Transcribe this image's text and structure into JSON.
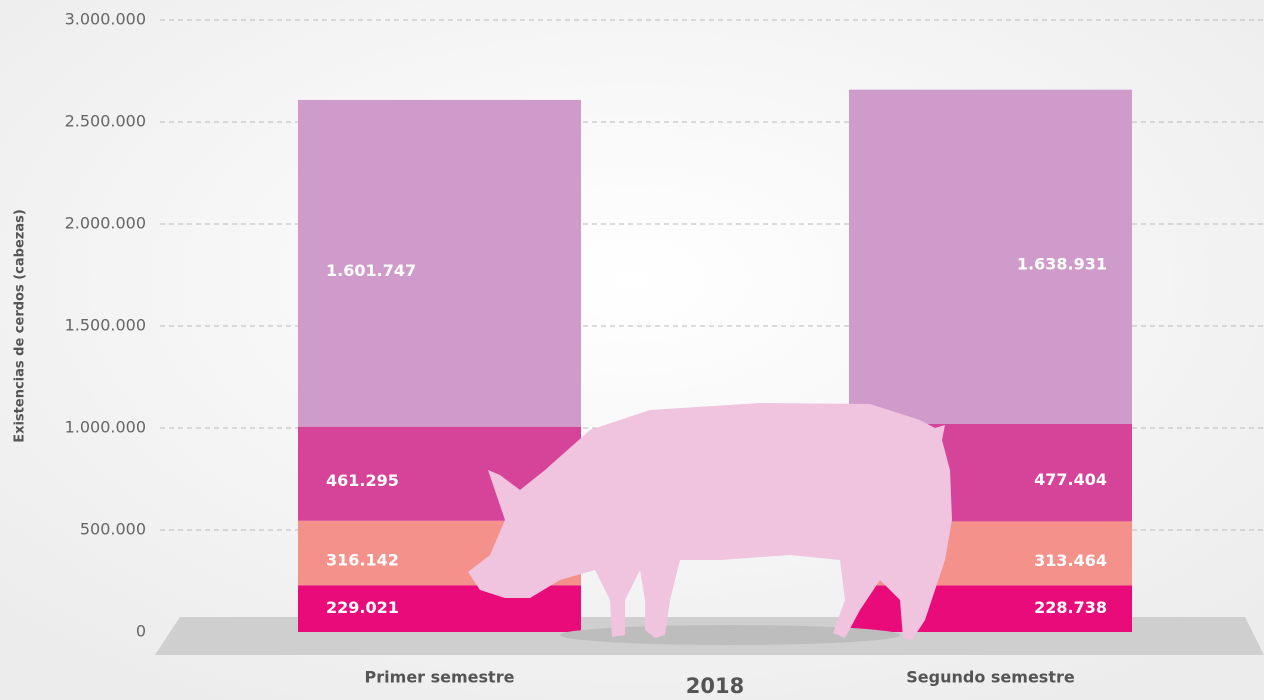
{
  "chart_data": {
    "type": "bar",
    "stacked": true,
    "ylabel": "Existencias de cerdos (cabezas)",
    "xlabel": "2018",
    "categories": [
      "Primer semestre",
      "Segundo semestre"
    ],
    "series": [
      {
        "color": "#ea0b7b",
        "values": [
          229021,
          228738
        ],
        "value_labels": [
          "229.021",
          "228.738"
        ]
      },
      {
        "color": "#f4918b",
        "values": [
          316142,
          313464
        ],
        "value_labels": [
          "316.142",
          "313.464"
        ]
      },
      {
        "color": "#d54498",
        "values": [
          461295,
          477404
        ],
        "value_labels": [
          "461.295",
          "477.404"
        ]
      },
      {
        "color": "#cf9bcb",
        "values": [
          1601747,
          1638931
        ],
        "value_labels": [
          "1.601.747",
          "1.638.931"
        ]
      }
    ],
    "ylim": [
      0,
      3000000
    ],
    "yticks": [
      0,
      {
        "value": 500000,
        "label": "500.000"
      },
      {
        "value": 1000000,
        "label": "1.000.000"
      },
      {
        "value": 1500000,
        "label": "1.500.000"
      },
      {
        "value": 2000000,
        "label": "2.000.000"
      },
      {
        "value": 2500000,
        "label": "2.500.000"
      },
      {
        "value": 3000000,
        "label": "3.000.000"
      }
    ],
    "grid": true
  }
}
